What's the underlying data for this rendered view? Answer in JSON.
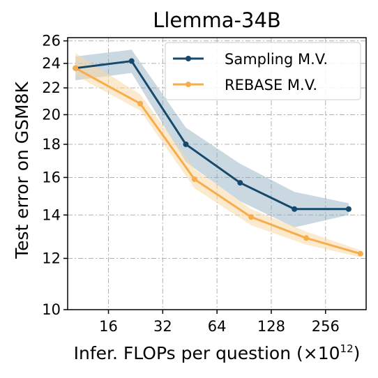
{
  "chart_data": {
    "type": "line",
    "title": "Llemma-34B",
    "xlabel": "Infer. FLOPs per question (×10",
    "xlabel_sup": "12",
    "xlabel_close": ")",
    "ylabel": "Test error on GSM8K",
    "x_scale": "log2",
    "y_scale": "log",
    "xlim": [
      9.5,
      430
    ],
    "ylim": [
      10,
      26.3
    ],
    "x_ticks": [
      16,
      32,
      64,
      128,
      256
    ],
    "x_tick_labels": [
      "16",
      "32",
      "64",
      "128",
      "256"
    ],
    "y_ticks": [
      10,
      12,
      14,
      16,
      18,
      20,
      22,
      24,
      26
    ],
    "y_tick_labels": [
      "10",
      "12",
      "14",
      "16",
      "18",
      "20",
      "22",
      "24",
      "26"
    ],
    "grid": true,
    "legend_position": "top-right",
    "series": [
      {
        "name": "Sampling M.V.",
        "color": "#16496b",
        "band_color": "#8aa9bc",
        "x": [
          10.5,
          21.5,
          43,
          86,
          172,
          344
        ],
        "y": [
          23.6,
          24.2,
          18.0,
          15.7,
          14.3,
          14.3
        ],
        "band_upper": [
          24.6,
          25.2,
          19.1,
          16.8,
          15.2,
          14.6
        ],
        "band_lower": [
          22.6,
          23.2,
          16.9,
          14.7,
          13.4,
          14.0
        ]
      },
      {
        "name": "REBASE M.V.",
        "color": "#f7ad4b",
        "band_color": "#f9d9a8",
        "x": [
          10.5,
          24,
          48,
          99,
          200,
          400
        ],
        "y": [
          23.6,
          20.8,
          15.9,
          13.9,
          12.9,
          12.2
        ],
        "band_upper": [
          24.9,
          21.5,
          16.5,
          14.3,
          13.2,
          12.35
        ],
        "band_lower": [
          23.0,
          20.3,
          15.4,
          13.5,
          12.6,
          12.05
        ]
      }
    ]
  }
}
